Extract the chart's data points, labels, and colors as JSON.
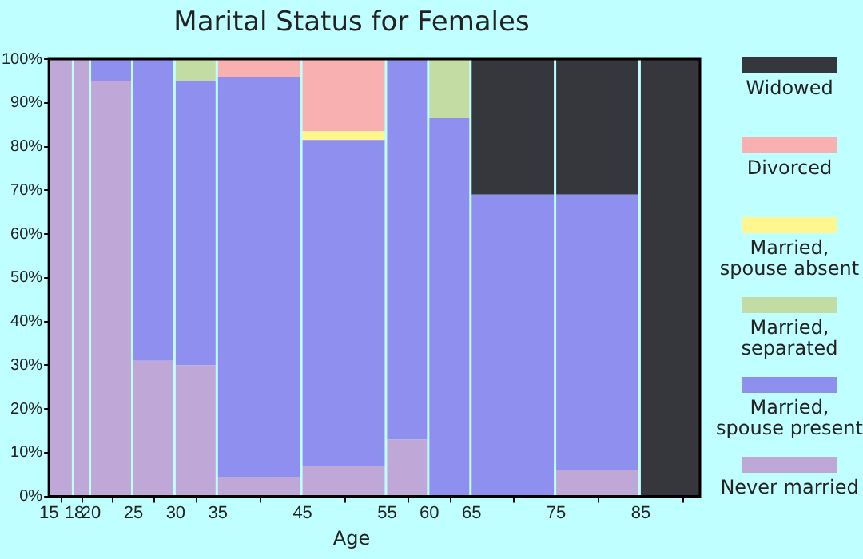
{
  "chart_data": {
    "type": "bar",
    "stacked": true,
    "title": "Marital Status for Females",
    "xlabel": "Age",
    "x": [
      16.5,
      19,
      22.5,
      27.5,
      32.5,
      40,
      50,
      57.5,
      62.5,
      70,
      80,
      88.5
    ],
    "xlim": [
      15,
      92
    ],
    "xticks": [
      15,
      18,
      20,
      25,
      30,
      35,
      45,
      55,
      60,
      65,
      75,
      85
    ],
    "ylim": [
      0,
      100
    ],
    "yticks": [
      {
        "value": 0,
        "label": "0%"
      },
      {
        "value": 10,
        "label": "10%"
      },
      {
        "value": 20,
        "label": "20%"
      },
      {
        "value": 30,
        "label": "30%"
      },
      {
        "value": 40,
        "label": "40%"
      },
      {
        "value": 50,
        "label": "50%"
      },
      {
        "value": 60,
        "label": "60%"
      },
      {
        "value": 70,
        "label": "70%"
      },
      {
        "value": 80,
        "label": "80%"
      },
      {
        "value": 90,
        "label": "90%"
      },
      {
        "value": 100,
        "label": "100%"
      }
    ],
    "legend": "right",
    "series": [
      {
        "name": "Never married",
        "color": "#bfa8d8",
        "values": [
          100,
          100,
          95,
          31,
          30,
          4.5,
          7,
          13,
          0,
          0,
          6,
          0
        ]
      },
      {
        "name": "Married, spouse present",
        "color": "#8f8ff0",
        "values": [
          0,
          0,
          5,
          69,
          65,
          91.5,
          74.5,
          87,
          86.5,
          69,
          63,
          0
        ]
      },
      {
        "name": "Married, separated",
        "color": "#c2dca4",
        "values": [
          0,
          0,
          0,
          0,
          5,
          0,
          0,
          0,
          13.5,
          0,
          0,
          0
        ]
      },
      {
        "name": "Married, spouse absent",
        "color": "#fff68f",
        "values": [
          0,
          0,
          0,
          0,
          0,
          0,
          2,
          0,
          0,
          0,
          0,
          0
        ]
      },
      {
        "name": "Divorced",
        "color": "#f8b0b0",
        "values": [
          0,
          0,
          0,
          0,
          0,
          4,
          16.5,
          0,
          0,
          0,
          0,
          0
        ]
      },
      {
        "name": "Widowed",
        "color": "#35373d",
        "values": [
          0,
          0,
          0,
          0,
          0,
          0,
          0,
          0,
          0,
          31,
          31,
          100
        ]
      }
    ]
  }
}
